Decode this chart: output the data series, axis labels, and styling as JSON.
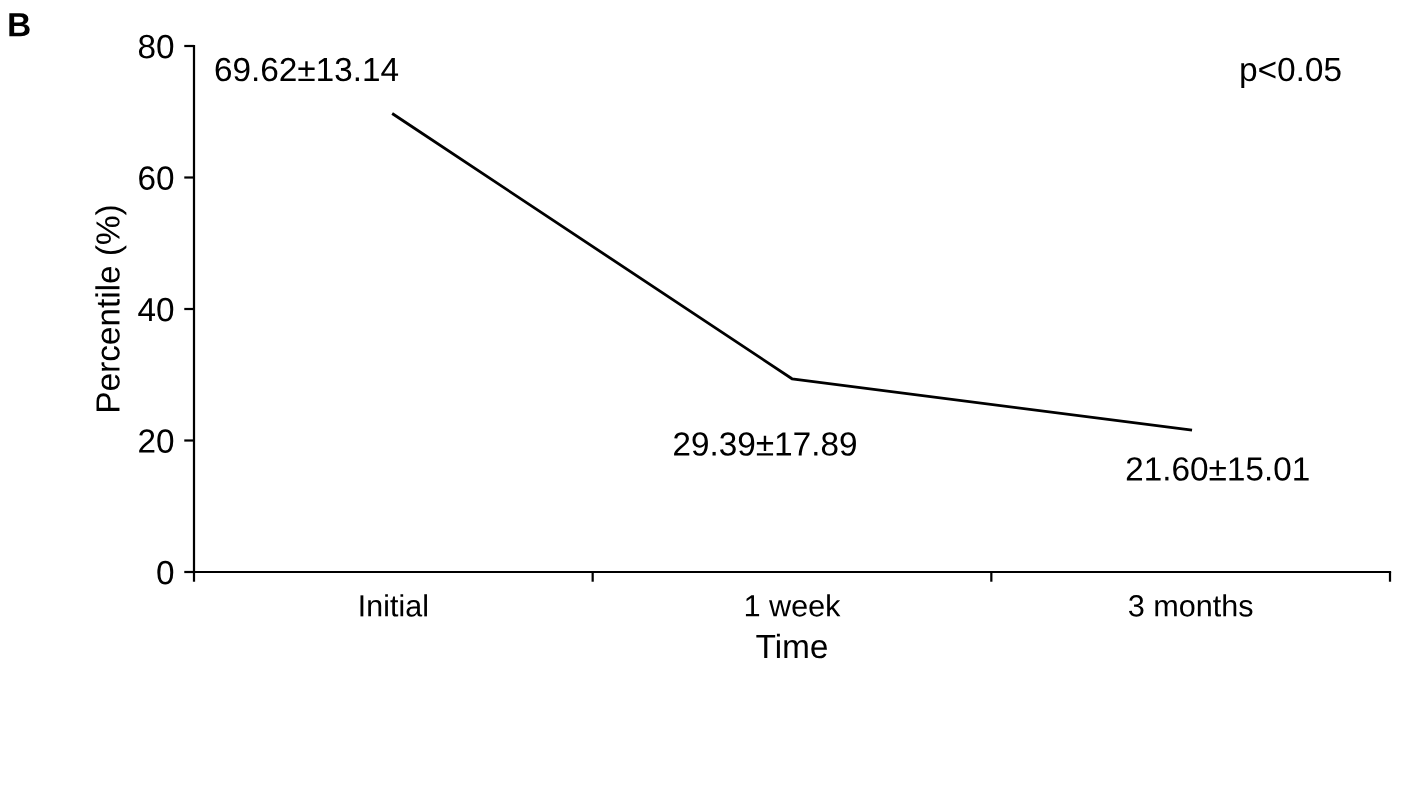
{
  "chart_data": {
    "type": "line",
    "xlabel": "Time",
    "ylabel": "Percentile (%)",
    "categories": [
      "Initial",
      "1 week",
      "3 months"
    ],
    "series": [
      {
        "color": "#000000",
        "values": [
          69.62,
          29.39,
          21.6
        ],
        "value_labels": [
          "69.62±13.14",
          "29.39±17.89",
          "21.60±15.01"
        ]
      }
    ],
    "ylim": [
      0,
      80
    ],
    "yticks": [
      0,
      20,
      40,
      60,
      80
    ],
    "grid": false,
    "legend": false,
    "marker": "none",
    "line_style": "solid",
    "annotations": [
      "B",
      "p<0.05"
    ]
  }
}
